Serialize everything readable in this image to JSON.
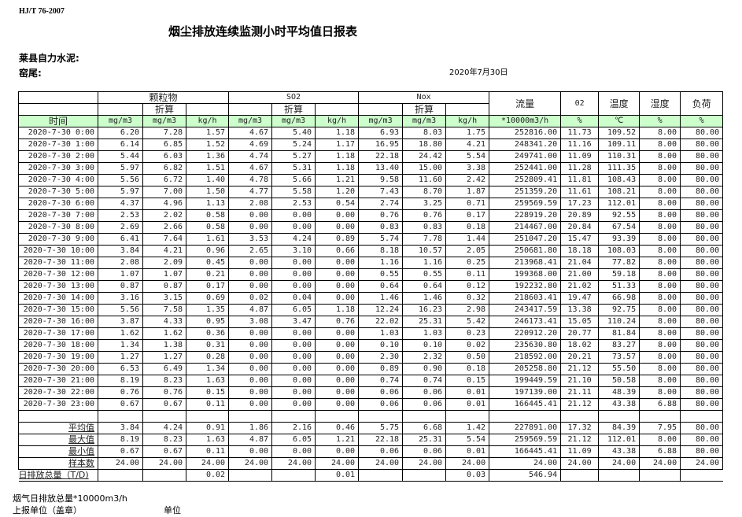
{
  "header": {
    "standard": "HJ/T  76-2007",
    "title": "烟尘排放连续监测小时平均值日报表",
    "company": "莱县自力水泥:",
    "kiln": "窑尾:",
    "date": "2020年7月30日"
  },
  "table": {
    "groups": [
      "颗粒物",
      "SO2",
      "Nox",
      "流量",
      "02",
      "温度",
      "湿度",
      "负荷"
    ],
    "converted_label": "折算",
    "time_label": "时间",
    "units": [
      "mg/m3",
      "mg/m3",
      "kg/h",
      "mg/m3",
      "mg/m3",
      "kg/h",
      "mg/m3",
      "mg/m3",
      "kg/h",
      "*10000m3/h",
      "%",
      "℃",
      "%",
      "%"
    ],
    "rows": [
      [
        "2020-7-30 0:00",
        "6.20",
        "7.28",
        "1.57",
        "4.67",
        "5.40",
        "1.18",
        "6.93",
        "8.03",
        "1.75",
        "252816.00",
        "11.73",
        "109.52",
        "8.00",
        "80.00"
      ],
      [
        "2020-7-30 1:00",
        "6.14",
        "6.85",
        "1.52",
        "4.69",
        "5.24",
        "1.17",
        "16.95",
        "18.80",
        "4.21",
        "248341.20",
        "11.16",
        "109.11",
        "8.00",
        "80.00"
      ],
      [
        "2020-7-30 2:00",
        "5.44",
        "6.03",
        "1.36",
        "4.74",
        "5.27",
        "1.18",
        "22.18",
        "24.42",
        "5.54",
        "249741.00",
        "11.09",
        "110.31",
        "8.00",
        "80.00"
      ],
      [
        "2020-7-30 3:00",
        "5.97",
        "6.82",
        "1.51",
        "4.67",
        "5.31",
        "1.18",
        "13.40",
        "15.00",
        "3.38",
        "252441.00",
        "11.28",
        "111.35",
        "8.00",
        "80.00"
      ],
      [
        "2020-7-30 4:00",
        "5.56",
        "6.72",
        "1.40",
        "4.78",
        "5.66",
        "1.21",
        "9.58",
        "11.60",
        "2.42",
        "252809.41",
        "11.81",
        "108.43",
        "8.00",
        "80.00"
      ],
      [
        "2020-7-30 5:00",
        "5.97",
        "7.00",
        "1.50",
        "4.77",
        "5.58",
        "1.20",
        "7.43",
        "8.70",
        "1.87",
        "251359.20",
        "11.61",
        "108.21",
        "8.00",
        "80.00"
      ],
      [
        "2020-7-30 6:00",
        "4.37",
        "4.96",
        "1.13",
        "2.08",
        "2.53",
        "0.54",
        "2.74",
        "3.25",
        "0.71",
        "259569.59",
        "17.23",
        "112.01",
        "8.00",
        "80.00"
      ],
      [
        "2020-7-30 7:00",
        "2.53",
        "2.02",
        "0.58",
        "0.00",
        "0.00",
        "0.00",
        "0.76",
        "0.76",
        "0.17",
        "228919.20",
        "20.89",
        "92.55",
        "8.00",
        "80.00"
      ],
      [
        "2020-7-30 8:00",
        "2.69",
        "2.66",
        "0.58",
        "0.00",
        "0.00",
        "0.00",
        "0.83",
        "0.83",
        "0.18",
        "214467.00",
        "20.84",
        "67.54",
        "8.00",
        "80.00"
      ],
      [
        "2020-7-30 9:00",
        "6.41",
        "7.64",
        "1.61",
        "3.53",
        "4.24",
        "0.89",
        "5.74",
        "7.78",
        "1.44",
        "251047.20",
        "15.47",
        "93.39",
        "8.00",
        "80.00"
      ],
      [
        "2020-7-30 10:00",
        "3.84",
        "4.21",
        "0.96",
        "2.65",
        "3.10",
        "0.66",
        "8.18",
        "10.57",
        "2.05",
        "250681.80",
        "18.18",
        "108.03",
        "8.00",
        "80.00"
      ],
      [
        "2020-7-30 11:00",
        "2.08",
        "2.09",
        "0.45",
        "0.00",
        "0.00",
        "0.00",
        "1.16",
        "1.16",
        "0.25",
        "213968.41",
        "21.04",
        "77.82",
        "8.00",
        "80.00"
      ],
      [
        "2020-7-30 12:00",
        "1.07",
        "1.07",
        "0.21",
        "0.00",
        "0.00",
        "0.00",
        "0.55",
        "0.55",
        "0.11",
        "199368.00",
        "21.00",
        "59.18",
        "8.00",
        "80.00"
      ],
      [
        "2020-7-30 13:00",
        "0.87",
        "0.87",
        "0.17",
        "0.00",
        "0.00",
        "0.00",
        "0.64",
        "0.64",
        "0.12",
        "192232.80",
        "21.02",
        "51.33",
        "8.00",
        "80.00"
      ],
      [
        "2020-7-30 14:00",
        "3.16",
        "3.15",
        "0.69",
        "0.02",
        "0.04",
        "0.00",
        "1.46",
        "1.46",
        "0.32",
        "218603.41",
        "19.47",
        "66.98",
        "8.00",
        "80.00"
      ],
      [
        "2020-7-30 15:00",
        "5.56",
        "7.58",
        "1.35",
        "4.87",
        "6.05",
        "1.18",
        "12.24",
        "16.23",
        "2.98",
        "243417.59",
        "13.38",
        "92.75",
        "8.00",
        "80.00"
      ],
      [
        "2020-7-30 16:00",
        "3.87",
        "4.33",
        "0.95",
        "3.08",
        "3.47",
        "0.76",
        "22.02",
        "25.31",
        "5.42",
        "246173.41",
        "15.05",
        "110.24",
        "8.00",
        "80.00"
      ],
      [
        "2020-7-30 17:00",
        "1.62",
        "1.62",
        "0.36",
        "0.00",
        "0.00",
        "0.00",
        "1.03",
        "1.03",
        "0.23",
        "220912.20",
        "20.77",
        "81.84",
        "8.00",
        "80.00"
      ],
      [
        "2020-7-30 18:00",
        "1.34",
        "1.38",
        "0.31",
        "0.00",
        "0.00",
        "0.00",
        "0.10",
        "0.10",
        "0.02",
        "235630.80",
        "18.02",
        "83.27",
        "8.00",
        "80.00"
      ],
      [
        "2020-7-30 19:00",
        "1.27",
        "1.27",
        "0.28",
        "0.00",
        "0.00",
        "0.00",
        "2.30",
        "2.32",
        "0.50",
        "218592.00",
        "20.21",
        "73.57",
        "8.00",
        "80.00"
      ],
      [
        "2020-7-30 20:00",
        "6.53",
        "6.49",
        "1.34",
        "0.00",
        "0.00",
        "0.00",
        "0.89",
        "0.90",
        "0.18",
        "205258.80",
        "21.12",
        "55.50",
        "8.00",
        "80.00"
      ],
      [
        "2020-7-30 21:00",
        "8.19",
        "8.23",
        "1.63",
        "0.00",
        "0.00",
        "0.00",
        "0.74",
        "0.74",
        "0.15",
        "199449.59",
        "21.10",
        "50.58",
        "8.00",
        "80.00"
      ],
      [
        "2020-7-30 22:00",
        "0.76",
        "0.76",
        "0.15",
        "0.00",
        "0.00",
        "0.00",
        "0.06",
        "0.06",
        "0.01",
        "197139.00",
        "21.11",
        "48.39",
        "8.00",
        "80.00"
      ],
      [
        "2020-7-30 23:00",
        "0.67",
        "0.67",
        "0.11",
        "0.00",
        "0.00",
        "0.00",
        "0.06",
        "0.06",
        "0.01",
        "166445.41",
        "21.12",
        "43.38",
        "6.88",
        "80.00"
      ]
    ],
    "stats": [
      [
        "平均值",
        "3.84",
        "4.24",
        "0.91",
        "1.86",
        "2.16",
        "0.46",
        "5.75",
        "6.68",
        "1.42",
        "227891.00",
        "17.32",
        "84.39",
        "7.95",
        "80.00"
      ],
      [
        "最大值",
        "8.19",
        "8.23",
        "1.63",
        "4.87",
        "6.05",
        "1.21",
        "22.18",
        "25.31",
        "5.54",
        "259569.59",
        "21.12",
        "112.01",
        "8.00",
        "80.00"
      ],
      [
        "最小值",
        "0.67",
        "0.67",
        "0.11",
        "0.00",
        "0.00",
        "0.00",
        "0.06",
        "0.06",
        "0.01",
        "166445.41",
        "11.09",
        "43.38",
        "6.88",
        "80.00"
      ],
      [
        "样本数",
        "24.00",
        "24.00",
        "24.00",
        "24.00",
        "24.00",
        "24.00",
        "24.00",
        "24.00",
        "24.00",
        "24.00",
        "24.00",
        "24.00",
        "24.00",
        "24.00"
      ]
    ],
    "total": [
      "日排放总量（T/D)",
      "",
      "",
      "0.02",
      "",
      "",
      "0.01",
      "",
      "",
      "0.03",
      "546.94",
      "",
      "",
      "",
      ""
    ]
  },
  "footer": {
    "flue_gas_total": "烟气日排放总量*10000m3/h",
    "reporting_unit": "上报单位（盖章）",
    "unit": "单位"
  }
}
